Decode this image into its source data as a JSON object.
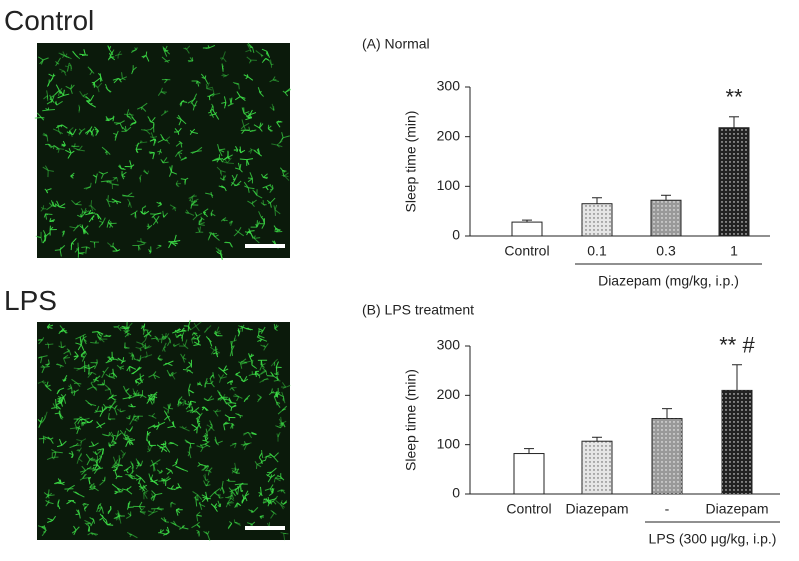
{
  "images": [
    {
      "label": "Control"
    },
    {
      "label": "LPS"
    }
  ],
  "chart_data": [
    {
      "type": "bar",
      "title": "(A) Normal",
      "y_label": "Sleep time (min)",
      "categories": [
        "Control",
        "0.1",
        "0.3",
        "1"
      ],
      "values": [
        28,
        65,
        72,
        218
      ],
      "errors": [
        4,
        12,
        10,
        22
      ],
      "colors": [
        "#ffffff",
        "#e6e6e6",
        "#999999",
        "#222222"
      ],
      "annotations": [
        null,
        null,
        null,
        "**"
      ],
      "group_label": "Diazepam (mg/kg, i.p.)",
      "ylim": [
        0,
        300
      ],
      "yticks": [
        0,
        100,
        200,
        300
      ]
    },
    {
      "type": "bar",
      "title": "(B) LPS treatment",
      "y_label": "Sleep time (min)",
      "categories": [
        "Control",
        "Diazepam",
        "-",
        "Diazepam"
      ],
      "values": [
        82,
        107,
        153,
        210
      ],
      "errors": [
        10,
        8,
        20,
        52
      ],
      "colors": [
        "#ffffff",
        "#e6e6e6",
        "#999999",
        "#222222"
      ],
      "annotations": [
        null,
        null,
        null,
        "** #"
      ],
      "group_label": "LPS (300 μg/kg, i.p.)",
      "ylim": [
        0,
        300
      ],
      "yticks": [
        0,
        100,
        200,
        300
      ]
    }
  ]
}
